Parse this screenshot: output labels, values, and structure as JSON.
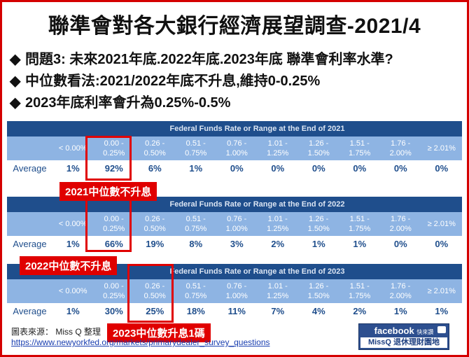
{
  "title": "聯準會對各大銀行經濟展望調查-2021/4",
  "bullets": [
    {
      "text": "問題3: 未來2021年底.2022年底.2023年底 聯準會利率水準?"
    },
    {
      "text": "中位數看法:2021/2022年底不升息,維持0-0.25%"
    },
    {
      "text": "2023年底利率會升為0.25%-0.5%"
    }
  ],
  "bullet_marker": "◆",
  "ranges": [
    [
      "< 0.00%",
      ""
    ],
    [
      "0.00 -",
      "0.25%"
    ],
    [
      "0.26 -",
      "0.50%"
    ],
    [
      "0.51 -",
      "0.75%"
    ],
    [
      "0.76 -",
      "1.00%"
    ],
    [
      "1.01 -",
      "1.25%"
    ],
    [
      "1.26 -",
      "1.50%"
    ],
    [
      "1.51 -",
      "1.75%"
    ],
    [
      "1.76 -",
      "2.00%"
    ],
    [
      "≥ 2.01%",
      ""
    ]
  ],
  "row_label": "Average",
  "tables": [
    {
      "header": "Federal Funds Rate or Range at the End of 2021",
      "values": [
        "1%",
        "92%",
        "6%",
        "1%",
        "0%",
        "0%",
        "0%",
        "0%",
        "0%",
        "0%"
      ],
      "note": "2021中位數不升息"
    },
    {
      "header": "Federal Funds Rate or Range at the End of 2022",
      "values": [
        "1%",
        "66%",
        "19%",
        "8%",
        "3%",
        "2%",
        "1%",
        "1%",
        "0%",
        "0%"
      ],
      "note": "2022中位數不升息"
    },
    {
      "header": "Federal Funds Rate or Range at the End of 2023",
      "values": [
        "1%",
        "30%",
        "25%",
        "18%",
        "11%",
        "7%",
        "4%",
        "2%",
        "1%",
        "1%"
      ],
      "note": "2023中位數升息1碼"
    }
  ],
  "source_label": "圖表來源： Miss Q 整理",
  "source_link": "https://www.newyorkfed.org/markets/primarydealer_survey_questions",
  "badge": {
    "top": "facebook",
    "top_small": "快來讚",
    "bottom": "MissQ 退休理財園地",
    "color": "#2d4f8f"
  },
  "colors": {
    "frame": "#d40000",
    "header_bg": "#1f4e8c",
    "range_bg": "#8eb4e3",
    "highlight": "#e00000"
  }
}
